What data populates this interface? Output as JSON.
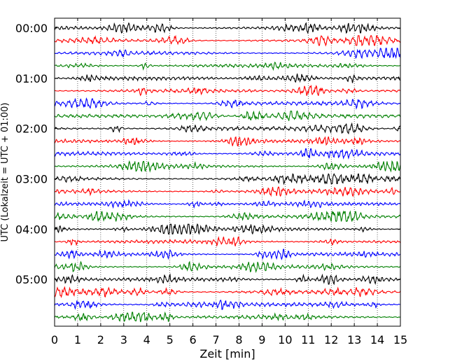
{
  "chart_data": {
    "type": "line",
    "title": "",
    "xlabel": "Zeit  [min]",
    "ylabel": "UTC (Lokalzeit = UTC + 01:00)",
    "xlim": [
      0,
      15
    ],
    "x_ticks": [
      0,
      1,
      2,
      3,
      4,
      5,
      6,
      7,
      8,
      9,
      10,
      11,
      12,
      13,
      14,
      15
    ],
    "row_labels": [
      "00:00",
      "01:00",
      "02:00",
      "03:00",
      "04:00",
      "05:00"
    ],
    "row_minutes": 15,
    "rows_per_hour": 4,
    "row_count": 24,
    "trace_colors": [
      "#000000",
      "#ff0000",
      "#0000ff",
      "#008000"
    ],
    "grid": {
      "x": true,
      "style": "dotted"
    },
    "legend": "none"
  }
}
